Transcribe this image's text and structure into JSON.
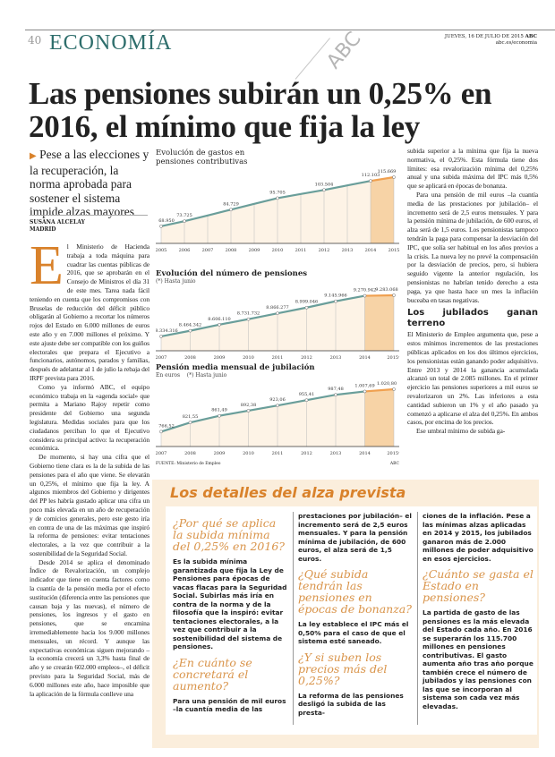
{
  "header": {
    "page_number": "40",
    "section": "ECONOMÍA",
    "date": "JUEVES, 16 DE JULIO DE 2015",
    "brand": "ABC",
    "url": "abc.es/economia"
  },
  "headline": "Las pensiones subirán un 0,25% en 2016, el mínimo que fija la ley",
  "subhead": "Pese a las elecciones y la recuperación, la norma aprobada para sostener el sistema impide alzas mayores",
  "byline": {
    "author": "SUSANA ALCELAY",
    "place": "MADRID"
  },
  "watermark": "ABC",
  "article": {
    "dropcap": "E",
    "left_paragraphs": [
      "l Ministerio de Hacienda trabaja a toda máquina para cuadrar las cuentas públicas de 2016, que se aprobarán en el Consejo de Ministros el día 31 de este mes. Tarea nada fácil teniendo en cuenta que los compromisos con Bruselas de reducción del déficit público obligarán al Gobierno a recortar los números rojos del Estado en 6.000 millones de euros este año y en 7.000 millones el próximo. Y este ajuste debe ser compatible con los guiños electorales que prepara el Ejecutivo a funcionarios, autónomos, parados y familias, después de adelantar al 1 de julio la rebaja del IRPF prevista para 2016.",
      "Como ya informó ABC, el equipo económico trabaja en la «agenda social» que permita a Mariano Rajoy repetir como presidente del Gobierno una segunda legislatura. Medidas sociales para que los ciudadanos perciban lo que el Ejecutivo considera su principal activo: la recuperación económica.",
      "De momento, si hay una cifra que el Gobierno tiene clara es la de la subida de las pensiones para el año que viene. Se elevarán un 0,25%, el mínimo que fija la ley. A algunos miembros del Gobierno y dirigentes del PP les habría gustado aplicar una cifra un poco más elevada en un año de recuperación y de comicios generales, pero este gesto iría en contra de una de las máximas que inspiró la reforma de pensiones: evitar tentaciones electorales, a la vez que contribuir a la sostenibilidad de la Seguridad Social.",
      "Desde 2014 se aplica el denominado Índice de Revalorización, un complejo indicador que tiene en cuenta factores como la cuantía de la pensión media por el efecto sustitución (diferencia entre las pensiones que causan baja y las nuevas), el número de pensiones, los ingresos y el gasto en pensiones, que se encamina irremediablemente hacia los 9.000 millones mensuales, un récord. Y aunque las expectativas económicas siguen mejorando –la economía crecerá un 3,3% hasta final de año y se crearán 602.000 empleos–, el déficit previsto para la Seguridad Social, más de 6.000 millones este año, hace imposible que la aplicación de la fórmula conlleve una"
    ],
    "right_paragraphs": [
      "subida superior a la mínima que fija la nueva normativa, el 0,25%. Esta fórmula tiene dos límites: esa revalorización mínima del 0,25% anual y una subida máxima del IPC más 0,5% que se aplicará en épocas de bonanza.",
      "Para una pensión de mil euros –la cuantía media de las prestaciones por jubilación– el incremento será de 2,5 euros mensuales. Y para la pensión mínima de jubilación, de 600 euros, el alza será de 1,5 euros. Los pensionistas tampoco tendrán la paga para compensar la desviación del IPC, que solía ser habitual en los años previos a la crisis. La nueva ley no prevé la compensación por la desviación de precios, pero, si hubiera seguido vigente la anterior regulación, los pensionistas no habrían tenido derecho a esta paga, ya que hasta hace un mes la inflación buceaba en tasas negativas."
    ],
    "subtitle": "Los jubilados ganan terreno",
    "right_paragraphs_2": [
      "El Ministerio de Empleo argumenta que, pese a estos mínimos incrementos de las prestaciones públicas aplicados en los dos últimos ejercicios, los pensionistas están ganando poder adquisitivo. Entre 2013 y 2014 la ganancia acumulada alcanzó un total de 2.085 millones. En el primer ejercicio las pensiones superiores a mil euros se revalorizaron un 2%. Las inferiores a esta cantidad subieron un 1% y el año pasado ya comenzó a aplicarse el alza del 0,25%. En ambos casos, por encima de los precios.",
      "Ese umbral mínimo de subida ga-"
    ]
  },
  "chart_data": [
    {
      "type": "line",
      "title": "Evolución de gastos en pensiones contributivas",
      "categories": [
        "2005",
        "2006",
        "2007",
        "2008",
        "2009",
        "2010",
        "2011",
        "2012",
        "2013",
        "2014",
        "2015"
      ],
      "labeled_points": {
        "2005": "68.950",
        "2006": "73.725",
        "2008": "84.729",
        "2010": "95.705",
        "2012": "103.504",
        "2014": "112.103",
        "2015": "115.669"
      },
      "values": [
        68950,
        73725,
        null,
        84729,
        null,
        95705,
        null,
        103504,
        null,
        112103,
        115669
      ],
      "highlight_last": true
    },
    {
      "type": "line",
      "title": "Evolución del número de pensiones",
      "note": "(*) Hasta junio",
      "categories": [
        "2007",
        "2008",
        "2009",
        "2010",
        "2011",
        "2012",
        "2013",
        "2014",
        "2015*"
      ],
      "labels": [
        "8.334.316",
        "8.464.342",
        "8.606.110",
        "8.731.732",
        "8.866.277",
        "8.999.046",
        "9.145.966",
        "9.270.942",
        "9.283.068"
      ],
      "values": [
        8334316,
        8464342,
        8606110,
        8731732,
        8866277,
        8999046,
        9145966,
        9270942,
        9283068
      ],
      "highlight_last": true
    },
    {
      "type": "line",
      "title": "Pensión media mensual de jubilación",
      "unit": "En euros",
      "note": "(*) Hasta junio",
      "categories": [
        "2007",
        "2008",
        "2009",
        "2010",
        "2011",
        "2012",
        "2013",
        "2014",
        "2015*"
      ],
      "labels": [
        "766,52",
        "821,55",
        "861,49",
        "892,38",
        "923,06",
        "955,41",
        "987,48",
        "1.007,69",
        "1.020,80"
      ],
      "values": [
        766.52,
        821.55,
        861.49,
        892.38,
        923.06,
        955.41,
        987.48,
        1007.69,
        1020.8
      ],
      "highlight_last": true
    }
  ],
  "chart_source": {
    "source": "FUENTE: Ministerio de Empleo",
    "credit": "ABC"
  },
  "colors": {
    "section": "#2e6e6c",
    "accent": "#d9822b",
    "line": "#6a9e9a",
    "box_bg": "#fbeedc"
  },
  "box": {
    "title": "Los detalles del alza prevista",
    "col1": [
      {
        "q": "¿Por qué se aplica la subida mínima del 0,25% en 2016?",
        "a": "Es la subida mínima garantizada que fija la Ley de Pensiones para épocas de vacas flacas para la Seguridad Social. Subirlas más iría en contra de la norma y de la filosofía que la inspiró: evitar tentaciones electorales, a la vez que contribuir a la sostenibilidad del sistema de pensiones."
      },
      {
        "q": "¿En cuánto se concretará el aumento?",
        "a": "Para una pensión de mil euros –la cuantía media de las"
      }
    ],
    "col2": [
      {
        "q": "",
        "a": "prestaciones por jubilación– el incremento será de 2,5 euros mensuales. Y para la pensión mínima de jubilación, de 600 euros, el alza será de 1,5 euros."
      },
      {
        "q": "¿Qué subida tendrán las pensiones en épocas de bonanza?",
        "a": "La ley establece el IPC más el 0,50% para el caso de que el sistema esté saneado."
      },
      {
        "q": "¿Y si suben los precios más del 0,25%?",
        "a": "La reforma de las pensiones desligó la subida de las presta-"
      }
    ],
    "col3": [
      {
        "q": "",
        "a": "ciones de la inflación. Pese a las mínimas alzas aplicadas en 2014 y 2015, los jubilados ganaron más de 2.000 millones de poder adquisitivo en esos ejercicios."
      },
      {
        "q": "¿Cuánto se gasta el Estado en pensiones?",
        "a": "La partida de gasto de las pensiones es la más elevada del Estado cada año. En 2016 se superarán los 115.700 millones en pensiones contributivas. El gasto aumenta año tras año porque también crece el número de jubilados y las pensiones con las que se incorporan al sistema son cada vez más elevadas."
      }
    ]
  }
}
